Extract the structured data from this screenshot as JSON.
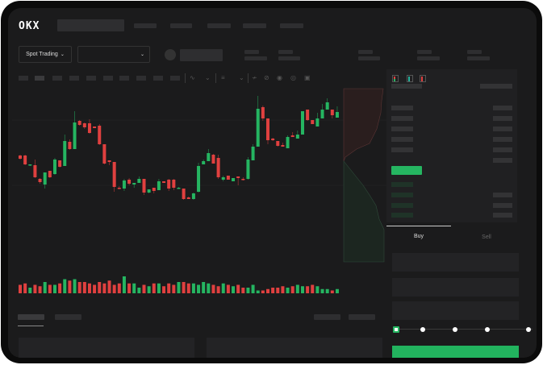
{
  "header": {
    "logo": "OKX",
    "nav_items": 5
  },
  "market_bar": {
    "mode_label": "Spot Trading",
    "pair_select": "",
    "stats": 5
  },
  "toolbar": {
    "icons": [
      "indicator-icon",
      "chevron-down-icon",
      "candle-type-icon",
      "chevron-down-icon",
      "line-tool-icon",
      "ruler-icon",
      "screenshot-icon",
      "settings-icon",
      "fullscreen-icon"
    ]
  },
  "orderbook": {
    "view_icons": [
      "book-both-icon",
      "book-bids-icon",
      "book-asks-icon"
    ]
  },
  "trade": {
    "tabs": [
      "Buy",
      "Sell"
    ],
    "active_tab": "Buy",
    "slider_percent": 0,
    "slider_stops": [
      0,
      25,
      50,
      75,
      100
    ]
  },
  "colors": {
    "up": "#25b561",
    "down": "#e0403f",
    "background": "#1b1b1c",
    "buy_button": "#22b35e"
  },
  "chart_data": {
    "type": "candlestick",
    "candles": [
      [
        67,
        63,
        68,
        62
      ],
      [
        67,
        56,
        68,
        55
      ],
      [
        55,
        56,
        56,
        54
      ],
      [
        55,
        40,
        62,
        39
      ],
      [
        38,
        34,
        39,
        32
      ],
      [
        31,
        46,
        46,
        26
      ],
      [
        48,
        40,
        48,
        39
      ],
      [
        44,
        62,
        64,
        43
      ],
      [
        61,
        53,
        61,
        52
      ],
      [
        54,
        85,
        93,
        54
      ],
      [
        84,
        75,
        87,
        74
      ],
      [
        75,
        108,
        122,
        75
      ],
      [
        110,
        105,
        111,
        104
      ],
      [
        107,
        102,
        108,
        100
      ],
      [
        107,
        95,
        112,
        94
      ],
      [
        103,
        101,
        103,
        101
      ],
      [
        104,
        81,
        106,
        80
      ],
      [
        81,
        57,
        81,
        56
      ],
      [
        61,
        59,
        61,
        55
      ],
      [
        59,
        28,
        59,
        22
      ],
      [
        27,
        26,
        29,
        25
      ],
      [
        26,
        36,
        38,
        23
      ],
      [
        37,
        32,
        39,
        30
      ],
      [
        31,
        33,
        33,
        27
      ],
      [
        33,
        38,
        41,
        33
      ],
      [
        38,
        21,
        38,
        18
      ],
      [
        21,
        25,
        25,
        20
      ],
      [
        27,
        23,
        27,
        20
      ],
      [
        24,
        35,
        38,
        24
      ],
      [
        35,
        33,
        35,
        33
      ],
      [
        37,
        26,
        38,
        23
      ],
      [
        37,
        27,
        38,
        24
      ],
      [
        27,
        27,
        28,
        26
      ],
      [
        26,
        13,
        26,
        12
      ],
      [
        15,
        13,
        16,
        13
      ],
      [
        13,
        20,
        21,
        12
      ],
      [
        22,
        54,
        58,
        21
      ],
      [
        56,
        60,
        62,
        56
      ],
      [
        60,
        70,
        75,
        60
      ],
      [
        68,
        57,
        69,
        57
      ],
      [
        64,
        40,
        68,
        38
      ],
      [
        37,
        40,
        42,
        35
      ],
      [
        42,
        37,
        42,
        37
      ],
      [
        35,
        39,
        39,
        35
      ],
      [
        41,
        39,
        41,
        30
      ],
      [
        38,
        37,
        40,
        36
      ],
      [
        38,
        62,
        65,
        37
      ],
      [
        61,
        78,
        81,
        61
      ],
      [
        78,
        125,
        141,
        78
      ],
      [
        127,
        113,
        129,
        110
      ],
      [
        113,
        86,
        113,
        81
      ],
      [
        88,
        86,
        89,
        85
      ],
      [
        85,
        79,
        85,
        78
      ],
      [
        80,
        78,
        83,
        78
      ],
      [
        76,
        90,
        92,
        76
      ],
      [
        92,
        90,
        96,
        90
      ],
      [
        88,
        93,
        98,
        88
      ],
      [
        93,
        122,
        122,
        93
      ],
      [
        124,
        111,
        124,
        110
      ],
      [
        111,
        106,
        111,
        106
      ],
      [
        103,
        113,
        120,
        103
      ],
      [
        113,
        124,
        131,
        113
      ],
      [
        124,
        133,
        138,
        124
      ],
      [
        124,
        117,
        124,
        113
      ],
      [
        114,
        121,
        128,
        114
      ]
    ],
    "volume": [
      6,
      7,
      4,
      6,
      5,
      8,
      6,
      6,
      7,
      10,
      9,
      10,
      8,
      8,
      7,
      6,
      8,
      7,
      9,
      6,
      7,
      12,
      7,
      7,
      4,
      6,
      5,
      7,
      7,
      5,
      7,
      6,
      8,
      8,
      7,
      7,
      6,
      8,
      7,
      6,
      5,
      7,
      6,
      5,
      6,
      4,
      4,
      6,
      2,
      2,
      3,
      4,
      4,
      5,
      4,
      5,
      6,
      5,
      5,
      6,
      5,
      3,
      3,
      2,
      3
    ]
  }
}
